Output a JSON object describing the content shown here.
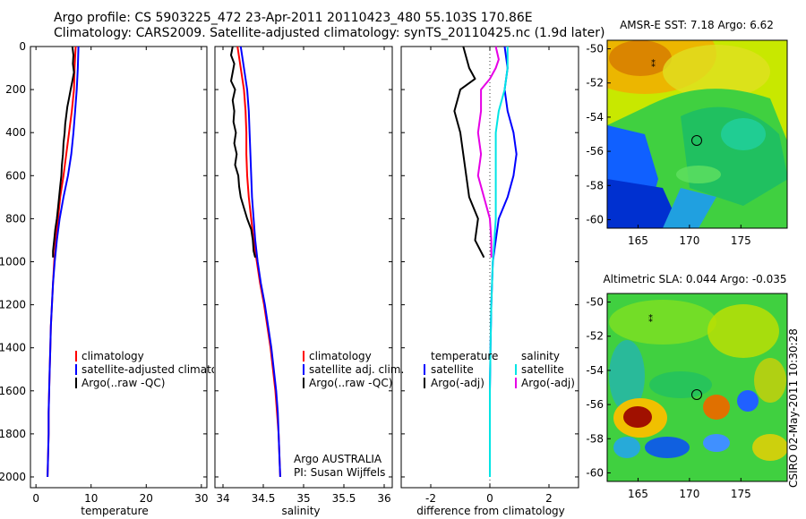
{
  "header": {
    "title_line1": "Argo profile: CS 5903225_472 23-Apr-2011 20110423_480 55.103S 170.86E",
    "title_line2": "Climatology: CARS2009. Satellite-adjusted climatology: synTS_20110425.nc (1.9d later)"
  },
  "footer": {
    "credit": "CSIRO 02-May-2011 10:30:28"
  },
  "colors": {
    "climatology": "#ff0000",
    "satellite": "#0000ff",
    "argo": "#000000",
    "satellite_salinity": "#00e5e5",
    "argo_salinity": "#e600e6"
  },
  "chart_data": [
    {
      "type": "line",
      "xlabel": "temperature",
      "ylim": [
        2050,
        0
      ],
      "xlim": [
        -1,
        31
      ],
      "xticks": [
        "0",
        "10",
        "20",
        "30"
      ],
      "yticks": [
        "0",
        "200",
        "400",
        "600",
        "800",
        "1000",
        "1200",
        "1400",
        "1600",
        "1800",
        "2000"
      ],
      "legend": [
        "climatology",
        "satellite-adjusted climatology",
        "Argo(..raw -QC)"
      ],
      "series": [
        {
          "name": "climatology",
          "color": "#ff0000",
          "points": [
            [
              7.2,
              0
            ],
            [
              7.0,
              100
            ],
            [
              6.9,
              200
            ],
            [
              6.5,
              300
            ],
            [
              6.0,
              400
            ],
            [
              5.5,
              500
            ],
            [
              5.0,
              600
            ],
            [
              4.4,
              700
            ],
            [
              4.0,
              800
            ],
            [
              3.6,
              900
            ],
            [
              3.3,
              1000
            ],
            [
              3.1,
              1100
            ],
            [
              2.9,
              1200
            ],
            [
              2.7,
              1300
            ],
            [
              2.6,
              1400
            ],
            [
              2.5,
              1500
            ],
            [
              2.4,
              1600
            ],
            [
              2.3,
              1700
            ],
            [
              2.3,
              1800
            ],
            [
              2.2,
              1900
            ],
            [
              2.1,
              2000
            ]
          ]
        },
        {
          "name": "satellite-adjusted climatology",
          "color": "#0000ff",
          "points": [
            [
              7.7,
              0
            ],
            [
              7.6,
              100
            ],
            [
              7.4,
              200
            ],
            [
              7.1,
              300
            ],
            [
              6.8,
              400
            ],
            [
              6.4,
              500
            ],
            [
              5.8,
              600
            ],
            [
              5.0,
              700
            ],
            [
              4.3,
              800
            ],
            [
              3.8,
              900
            ],
            [
              3.4,
              1000
            ],
            [
              3.1,
              1100
            ],
            [
              2.9,
              1200
            ],
            [
              2.7,
              1300
            ],
            [
              2.6,
              1400
            ],
            [
              2.5,
              1500
            ],
            [
              2.4,
              1600
            ],
            [
              2.3,
              1700
            ],
            [
              2.3,
              1800
            ],
            [
              2.2,
              1900
            ],
            [
              2.1,
              2000
            ]
          ]
        },
        {
          "name": "Argo(..raw -QC)",
          "color": "#000000",
          "points": [
            [
              6.6,
              0
            ],
            [
              6.8,
              40
            ],
            [
              6.7,
              80
            ],
            [
              6.9,
              120
            ],
            [
              6.6,
              160
            ],
            [
              6.3,
              200
            ],
            [
              6.0,
              240
            ],
            [
              5.7,
              280
            ],
            [
              5.5,
              320
            ],
            [
              5.3,
              360
            ],
            [
              5.2,
              400
            ],
            [
              5.0,
              450
            ],
            [
              4.9,
              500
            ],
            [
              4.7,
              550
            ],
            [
              4.6,
              600
            ],
            [
              4.4,
              650
            ],
            [
              4.2,
              700
            ],
            [
              4.0,
              750
            ],
            [
              3.8,
              800
            ],
            [
              3.5,
              850
            ],
            [
              3.3,
              900
            ],
            [
              3.1,
              950
            ],
            [
              3.1,
              980
            ]
          ]
        }
      ]
    },
    {
      "type": "line",
      "xlabel": "salinity",
      "ylim": [
        2050,
        0
      ],
      "xlim": [
        33.9,
        36.1
      ],
      "xticks": [
        "34",
        "34.5",
        "35",
        "35.5",
        "36"
      ],
      "legend": [
        "climatology",
        "satellite adj. clim.",
        "Argo(..raw -QC)"
      ],
      "annotations": [
        "Argo AUSTRALIA",
        "PI: Susan Wijffels"
      ],
      "series": [
        {
          "name": "climatology",
          "color": "#ff0000",
          "points": [
            [
              34.18,
              0
            ],
            [
              34.22,
              100
            ],
            [
              34.26,
              200
            ],
            [
              34.28,
              300
            ],
            [
              34.29,
              400
            ],
            [
              34.29,
              500
            ],
            [
              34.3,
              600
            ],
            [
              34.32,
              700
            ],
            [
              34.35,
              800
            ],
            [
              34.38,
              900
            ],
            [
              34.42,
              1000
            ],
            [
              34.46,
              1100
            ],
            [
              34.51,
              1200
            ],
            [
              34.55,
              1300
            ],
            [
              34.59,
              1400
            ],
            [
              34.62,
              1500
            ],
            [
              34.65,
              1600
            ],
            [
              34.67,
              1700
            ],
            [
              34.69,
              1800
            ],
            [
              34.7,
              1900
            ],
            [
              34.71,
              2000
            ]
          ]
        },
        {
          "name": "satellite adj. clim.",
          "color": "#0000ff",
          "points": [
            [
              34.22,
              0
            ],
            [
              34.26,
              100
            ],
            [
              34.3,
              200
            ],
            [
              34.32,
              300
            ],
            [
              34.33,
              400
            ],
            [
              34.34,
              500
            ],
            [
              34.35,
              600
            ],
            [
              34.36,
              700
            ],
            [
              34.38,
              800
            ],
            [
              34.4,
              900
            ],
            [
              34.43,
              1000
            ],
            [
              34.47,
              1100
            ],
            [
              34.52,
              1200
            ],
            [
              34.56,
              1300
            ],
            [
              34.6,
              1400
            ],
            [
              34.63,
              1500
            ],
            [
              34.66,
              1600
            ],
            [
              34.68,
              1700
            ],
            [
              34.69,
              1800
            ],
            [
              34.7,
              1900
            ],
            [
              34.71,
              2000
            ]
          ]
        },
        {
          "name": "Argo(..raw -QC)",
          "color": "#000000",
          "points": [
            [
              34.12,
              0
            ],
            [
              34.1,
              40
            ],
            [
              34.14,
              80
            ],
            [
              34.12,
              120
            ],
            [
              34.1,
              160
            ],
            [
              34.15,
              200
            ],
            [
              34.12,
              250
            ],
            [
              34.14,
              300
            ],
            [
              34.13,
              350
            ],
            [
              34.16,
              400
            ],
            [
              34.14,
              450
            ],
            [
              34.17,
              500
            ],
            [
              34.15,
              550
            ],
            [
              34.19,
              600
            ],
            [
              34.2,
              650
            ],
            [
              34.22,
              700
            ],
            [
              34.26,
              750
            ],
            [
              34.3,
              800
            ],
            [
              34.35,
              850
            ],
            [
              34.37,
              900
            ],
            [
              34.38,
              950
            ],
            [
              34.4,
              980
            ]
          ]
        }
      ]
    },
    {
      "type": "line",
      "xlabel": "difference from climatology",
      "ylim": [
        2050,
        0
      ],
      "xlim": [
        -3,
        3
      ],
      "xticks": [
        "-2",
        "0",
        "2"
      ],
      "legend": [
        "temperature",
        "satellite",
        "Argo(-adj)",
        "salinity",
        "satellite",
        "Argo(-adj)"
      ],
      "series": [
        {
          "name": "temperature satellite",
          "color": "#0000ff",
          "points": [
            [
              0.5,
              0
            ],
            [
              0.6,
              100
            ],
            [
              0.5,
              200
            ],
            [
              0.6,
              300
            ],
            [
              0.8,
              400
            ],
            [
              0.9,
              500
            ],
            [
              0.8,
              600
            ],
            [
              0.6,
              700
            ],
            [
              0.3,
              800
            ],
            [
              0.2,
              900
            ],
            [
              0.1,
              1000
            ],
            [
              0.05,
              1200
            ],
            [
              0.02,
              1400
            ],
            [
              0.0,
              1600
            ],
            [
              0.0,
              1800
            ],
            [
              0.0,
              2000
            ]
          ]
        },
        {
          "name": "temperature Argo(-adj)",
          "color": "#000000",
          "points": [
            [
              -0.9,
              0
            ],
            [
              -0.8,
              50
            ],
            [
              -0.7,
              100
            ],
            [
              -0.5,
              150
            ],
            [
              -1.0,
              200
            ],
            [
              -1.1,
              250
            ],
            [
              -1.2,
              300
            ],
            [
              -1.1,
              350
            ],
            [
              -1.0,
              400
            ],
            [
              -0.9,
              500
            ],
            [
              -0.8,
              600
            ],
            [
              -0.7,
              700
            ],
            [
              -0.4,
              800
            ],
            [
              -0.5,
              900
            ],
            [
              -0.2,
              980
            ]
          ]
        },
        {
          "name": "salinity satellite",
          "color": "#00e5e5",
          "points": [
            [
              0.6,
              0
            ],
            [
              0.6,
              100
            ],
            [
              0.5,
              200
            ],
            [
              0.3,
              300
            ],
            [
              0.2,
              400
            ],
            [
              0.2,
              500
            ],
            [
              0.2,
              600
            ],
            [
              0.2,
              700
            ],
            [
              0.2,
              800
            ],
            [
              0.15,
              900
            ],
            [
              0.1,
              1000
            ],
            [
              0.05,
              1200
            ],
            [
              0.02,
              1400
            ],
            [
              0.0,
              1600
            ],
            [
              0.0,
              1800
            ],
            [
              0.0,
              2000
            ]
          ]
        },
        {
          "name": "salinity Argo(-adj)",
          "color": "#e600e6",
          "points": [
            [
              0.2,
              0
            ],
            [
              0.3,
              60
            ],
            [
              0.2,
              100
            ],
            [
              0.0,
              150
            ],
            [
              -0.3,
              200
            ],
            [
              -0.3,
              300
            ],
            [
              -0.4,
              400
            ],
            [
              -0.3,
              500
            ],
            [
              -0.4,
              600
            ],
            [
              -0.2,
              700
            ],
            [
              0.0,
              800
            ],
            [
              0.05,
              900
            ],
            [
              0.05,
              980
            ]
          ]
        }
      ]
    }
  ],
  "maps": [
    {
      "title": "AMSR-E SST: 7.18 Argo: 6.62",
      "xticks": [
        "165",
        "170",
        "175"
      ],
      "yticks": [
        "-50",
        "-52",
        "-54",
        "-56",
        "-58",
        "-60"
      ]
    },
    {
      "title": "Altimetric SLA: 0.044 Argo: -0.035",
      "xticks": [
        "165",
        "170",
        "175"
      ],
      "yticks": [
        "-50",
        "-52",
        "-54",
        "-56",
        "-58",
        "-60"
      ]
    }
  ]
}
